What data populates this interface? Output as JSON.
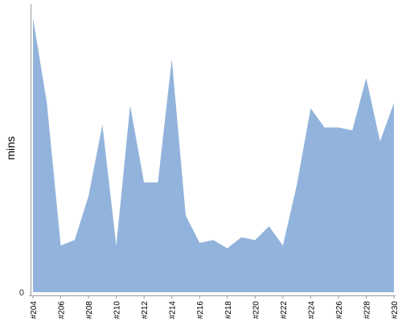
{
  "chart_data": {
    "type": "area",
    "title": "",
    "xlabel": "",
    "ylabel": "mins",
    "x": [
      "#204",
      "#205",
      "#206",
      "#207",
      "#208",
      "#209",
      "#210",
      "#211",
      "#212",
      "#213",
      "#214",
      "#215",
      "#216",
      "#217",
      "#218",
      "#219",
      "#220",
      "#221",
      "#222",
      "#223",
      "#224",
      "#225",
      "#226",
      "#227",
      "#228",
      "#229",
      "#230"
    ],
    "tick_labels": [
      "#204",
      "#206",
      "#208",
      "#210",
      "#212",
      "#214",
      "#216",
      "#218",
      "#220",
      "#222",
      "#224",
      "#226",
      "#228",
      "#230"
    ],
    "y_tick_labels": [
      "0"
    ],
    "values": [
      100,
      69,
      17,
      19,
      35,
      61,
      17,
      68,
      40,
      40,
      85,
      28,
      18,
      19,
      16,
      20,
      19,
      24,
      17,
      39,
      67,
      60,
      60,
      59,
      78,
      55,
      69
    ],
    "ylim": [
      0,
      105
    ],
    "fill_color": "#92b4dc",
    "axis_color": "#999999",
    "grid": false
  }
}
